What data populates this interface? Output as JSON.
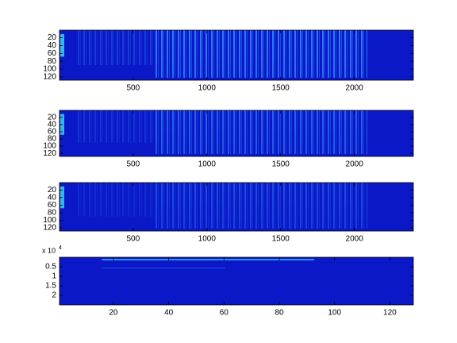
{
  "chart_data": [
    {
      "type": "heatmap",
      "colormap": "jet",
      "xlim": [
        0.5,
        2400
      ],
      "xticks": [
        500,
        1000,
        1500,
        2000
      ],
      "ylim": [
        0.5,
        128.5
      ],
      "y_reversed": true,
      "yticks": [
        20,
        40,
        60,
        80,
        100,
        120
      ]
    },
    {
      "type": "heatmap",
      "colormap": "jet",
      "xlim": [
        0.5,
        2400
      ],
      "xticks": [
        500,
        1000,
        1500,
        2000
      ],
      "ylim": [
        0.5,
        128.5
      ],
      "y_reversed": true,
      "yticks": [
        20,
        40,
        60,
        80,
        100,
        120
      ]
    },
    {
      "type": "heatmap",
      "colormap": "jet",
      "xlim": [
        0.5,
        2400
      ],
      "xticks": [
        500,
        1000,
        1500,
        2000
      ],
      "ylim": [
        0.5,
        128.5
      ],
      "y_reversed": true,
      "yticks": [
        20,
        40,
        60,
        80,
        100,
        120
      ]
    },
    {
      "type": "heatmap",
      "colormap": "jet",
      "xlim": [
        0.5,
        128.5
      ],
      "xticks": [
        20,
        40,
        60,
        80,
        100,
        120
      ],
      "ylim": [
        0,
        2.5
      ],
      "y_reversed": true,
      "yticks": [
        0.5,
        1,
        1.5,
        2
      ],
      "y_multiplier": {
        "base": "x 10",
        "exponent": "4"
      }
    }
  ]
}
